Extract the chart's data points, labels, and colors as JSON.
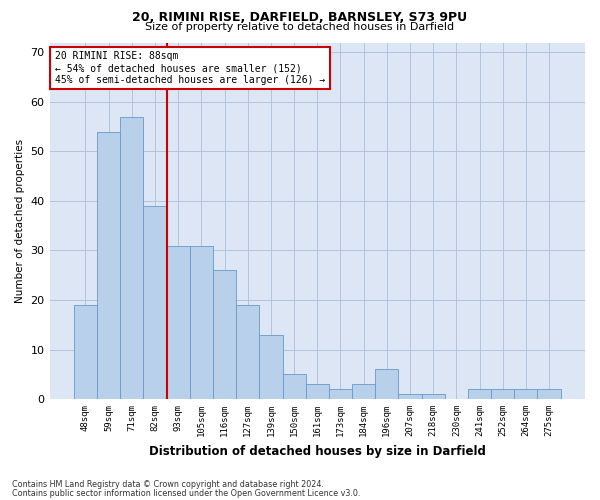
{
  "title_line1": "20, RIMINI RISE, DARFIELD, BARNSLEY, S73 9PU",
  "title_line2": "Size of property relative to detached houses in Darfield",
  "xlabel": "Distribution of detached houses by size in Darfield",
  "ylabel": "Number of detached properties",
  "categories": [
    "48sqm",
    "59sqm",
    "71sqm",
    "82sqm",
    "93sqm",
    "105sqm",
    "116sqm",
    "127sqm",
    "139sqm",
    "150sqm",
    "161sqm",
    "173sqm",
    "184sqm",
    "196sqm",
    "207sqm",
    "218sqm",
    "230sqm",
    "241sqm",
    "252sqm",
    "264sqm",
    "275sqm"
  ],
  "values": [
    19,
    54,
    57,
    39,
    31,
    31,
    26,
    19,
    13,
    5,
    3,
    2,
    3,
    6,
    1,
    1,
    0,
    2,
    2,
    2,
    2
  ],
  "bar_color": "#b8d0ea",
  "bar_edge_color": "#6699cc",
  "vline_color": "#cc0000",
  "annotation_text": "20 RIMINI RISE: 88sqm\n← 54% of detached houses are smaller (152)\n45% of semi-detached houses are larger (126) →",
  "footnote1": "Contains HM Land Registry data © Crown copyright and database right 2024.",
  "footnote2": "Contains public sector information licensed under the Open Government Licence v3.0.",
  "ylim": [
    0,
    72
  ],
  "yticks": [
    0,
    10,
    20,
    30,
    40,
    50,
    60,
    70
  ],
  "background_color": "#ffffff",
  "plot_bg_color": "#dce6f5",
  "grid_color": "#b0c4de"
}
